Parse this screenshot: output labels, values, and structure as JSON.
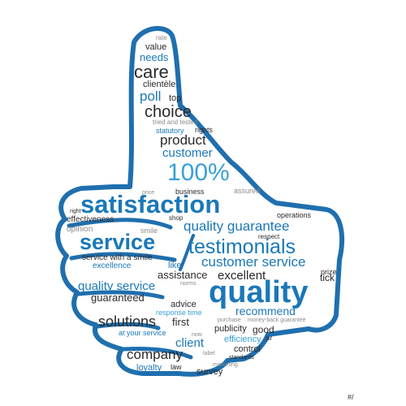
{
  "colors": {
    "outline": "#1f6fae",
    "dark": "#2a2a2a",
    "blue": "#1a78b8",
    "light_blue": "#39a0d6",
    "gray": "#8a8a8a",
    "background": "#ffffff"
  },
  "words": {
    "rate": "rate",
    "value": "value",
    "needs": "needs",
    "care": "care",
    "clientele": "clientèle",
    "poll": "poll",
    "top": "top",
    "choice": "choice",
    "tried_tested": "tried and tested",
    "statutory": "statutory",
    "rights": "rights",
    "product": "product",
    "customer": "customer",
    "percent": "100%",
    "price": "price",
    "business": "business",
    "assured": "assured",
    "satisfaction": "satisfaction",
    "right": "right",
    "effectiveness": "effectiveness",
    "shop": "shop",
    "opinion": "opinion",
    "quality_guarantee": "quality guarantee",
    "operations": "operations",
    "respect": "respect",
    "smile": "smile",
    "service": "service",
    "testimonials": "testimonials",
    "service_with_smile": "service with a smile",
    "like": "like",
    "customer_service": "customer service",
    "excellence": "excellence",
    "prize": "prize",
    "assistance": "assistance",
    "excellent": "excellent",
    "tick": "tick",
    "norms": "norms",
    "quality_service": "quality service",
    "quality": "quality",
    "guaranteed": "guaranteed",
    "advice": "advice",
    "response_time": "response time",
    "recommend": "recommend",
    "solutions": "solutions",
    "first": "first",
    "purchase": "purchase",
    "money_back": "money-back guarantee",
    "at_your_service": "at your service",
    "publicity": "publicity",
    "good": "good",
    "now": "now",
    "efficiency": "efficiency",
    "pr": "pr",
    "client": "client",
    "control": "control",
    "company": "company",
    "label": "label",
    "standards": "standards",
    "loyalty": "loyalty",
    "law": "law",
    "marketing": "marketing",
    "survey": "survey"
  },
  "watermark": "#/"
}
